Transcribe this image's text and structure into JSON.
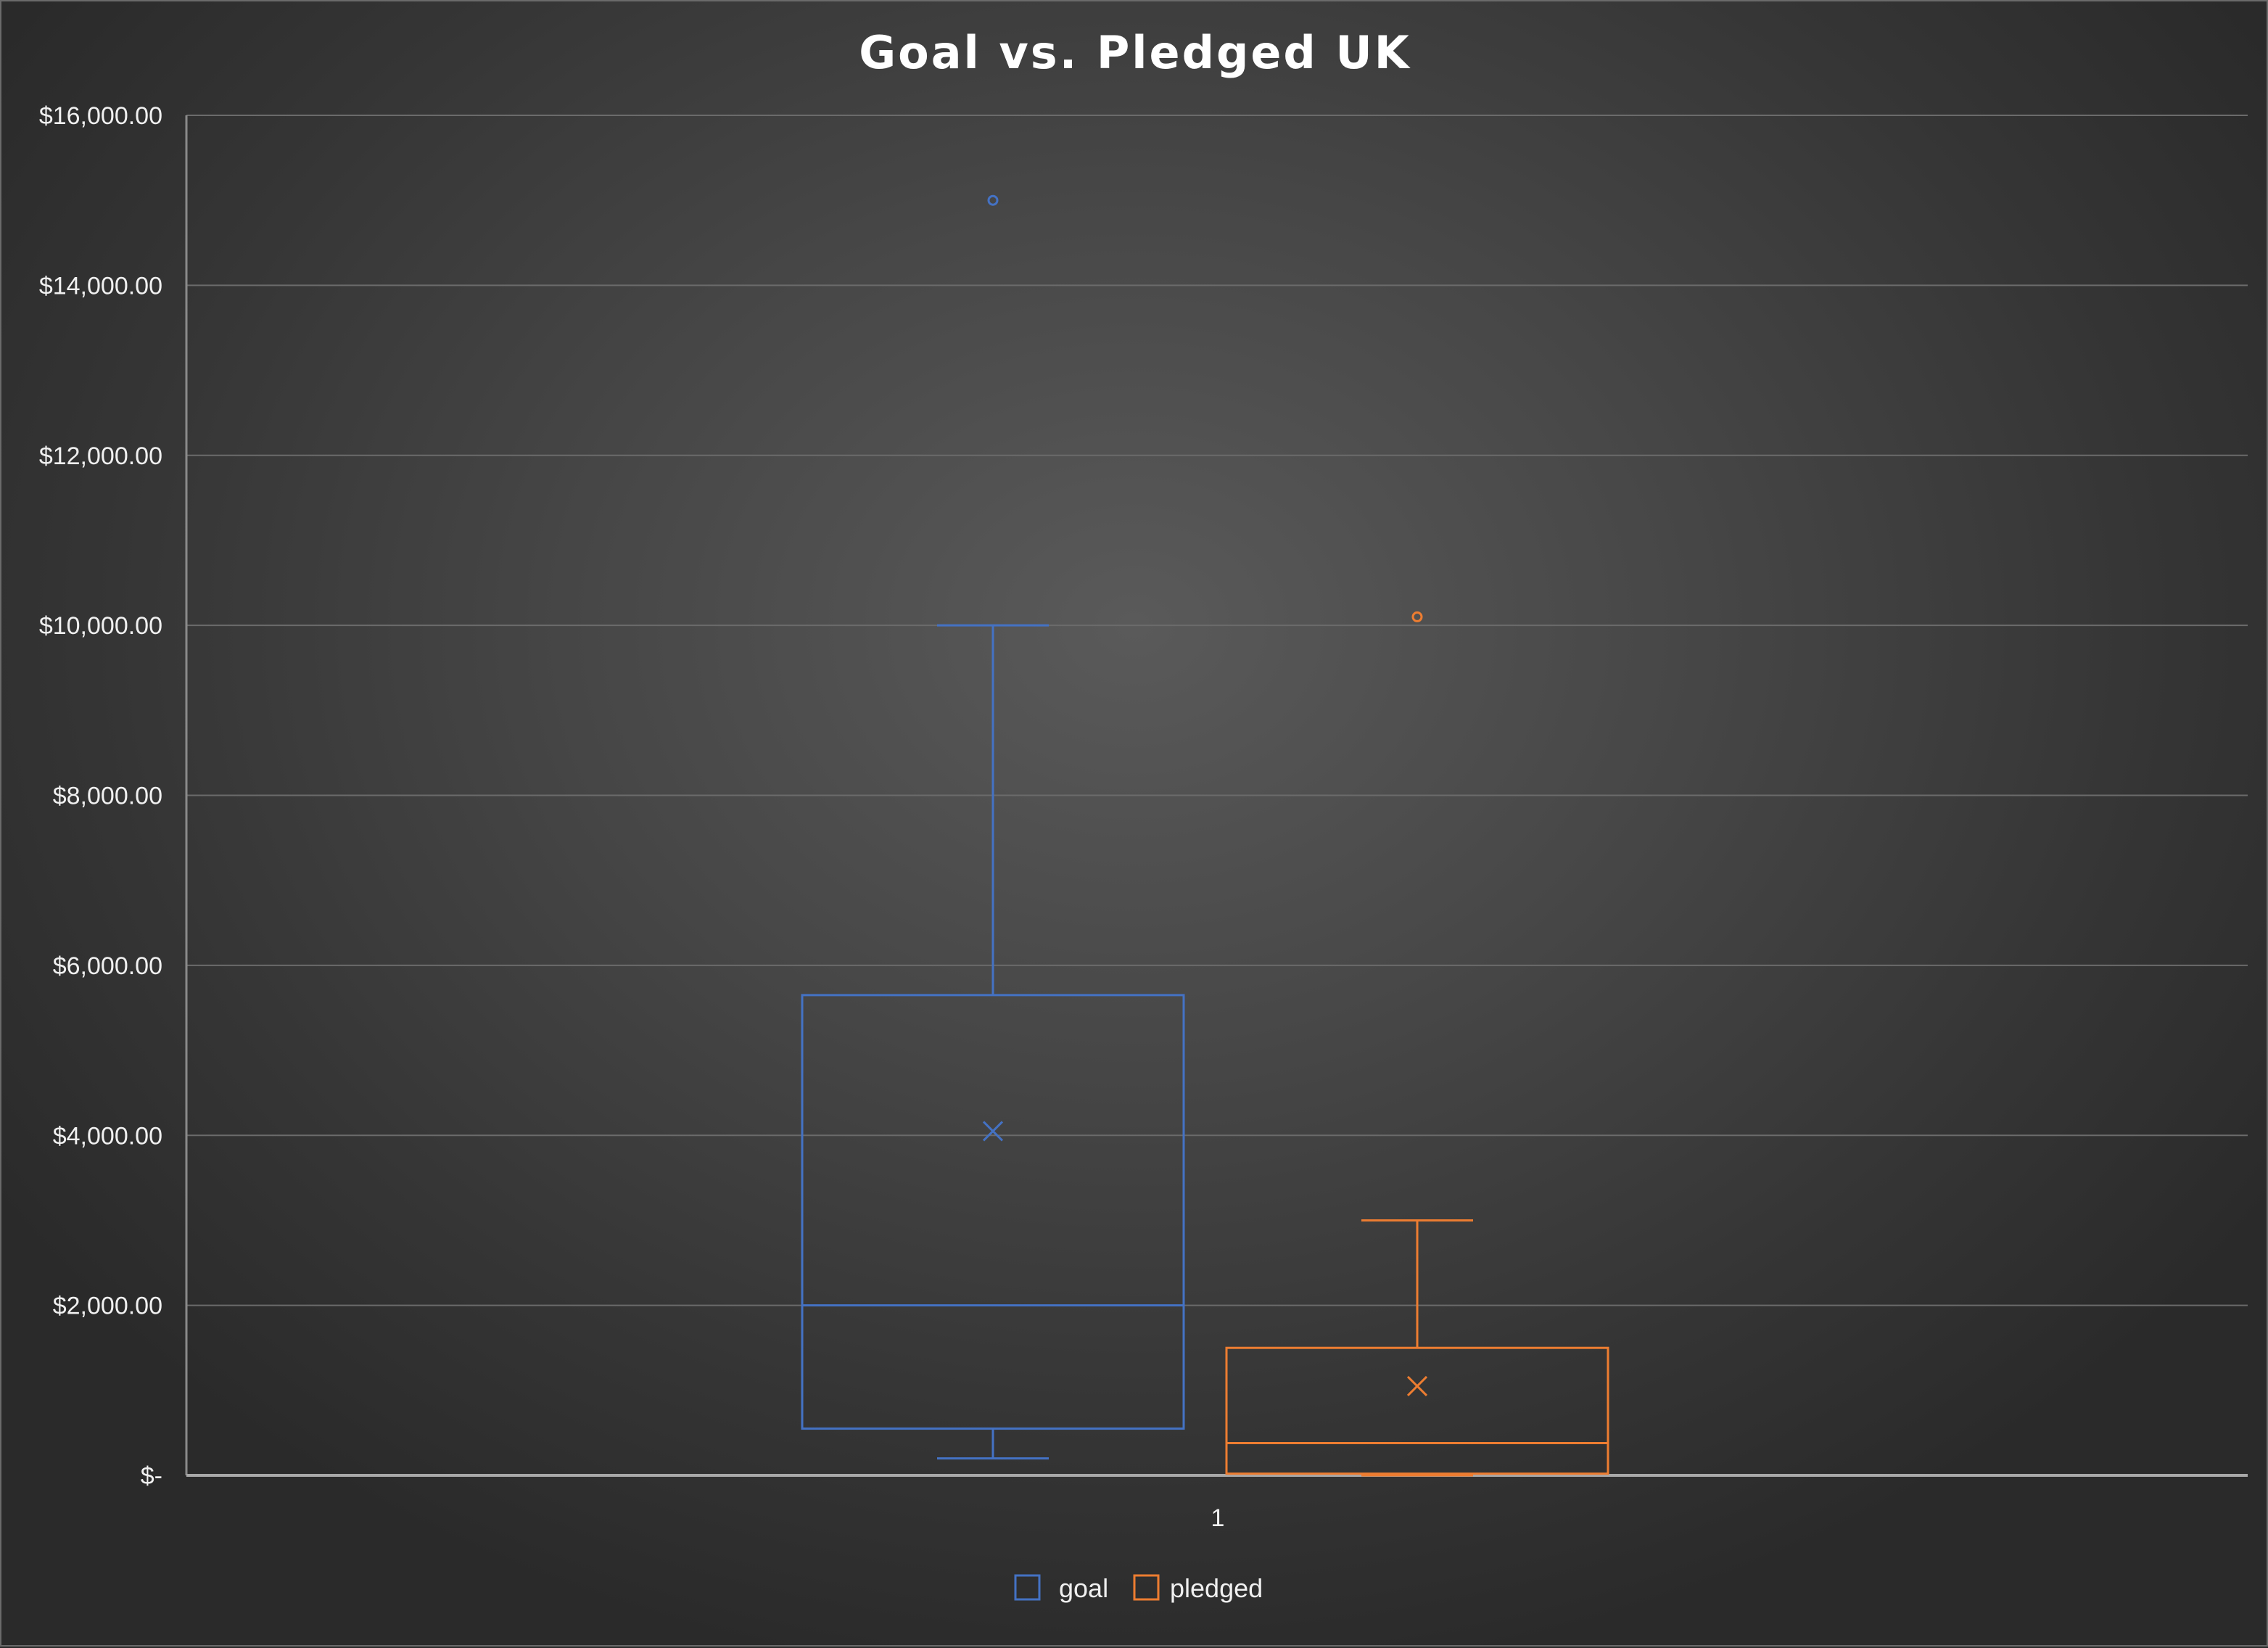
{
  "chart_data": {
    "type": "box",
    "title": "Goal vs. Pledged UK",
    "xlabel": "",
    "ylabel": "",
    "categories": [
      "1"
    ],
    "ylim": [
      0,
      16000
    ],
    "y_ticks": [
      {
        "value": 0,
        "label": "$-"
      },
      {
        "value": 2000,
        "label": "$2,000.00"
      },
      {
        "value": 4000,
        "label": "$4,000.00"
      },
      {
        "value": 6000,
        "label": "$6,000.00"
      },
      {
        "value": 8000,
        "label": "$8,000.00"
      },
      {
        "value": 10000,
        "label": "$10,000.00"
      },
      {
        "value": 12000,
        "label": "$12,000.00"
      },
      {
        "value": 14000,
        "label": "$14,000.00"
      },
      {
        "value": 16000,
        "label": "$16,000.00"
      }
    ],
    "grid": true,
    "legend_position": "bottom",
    "series": [
      {
        "name": "goal",
        "color": "#4472C4",
        "whisker_low": 200,
        "q1": 550,
        "median": 2000,
        "q3": 5650,
        "whisker_high": 10000,
        "mean": 4050,
        "outliers": [
          15000
        ]
      },
      {
        "name": "pledged",
        "color": "#ED7D31",
        "whisker_low": 0,
        "q1": 20,
        "median": 380,
        "q3": 1500,
        "whisker_high": 3000,
        "mean": 1050,
        "outliers": [
          10100
        ]
      }
    ]
  }
}
